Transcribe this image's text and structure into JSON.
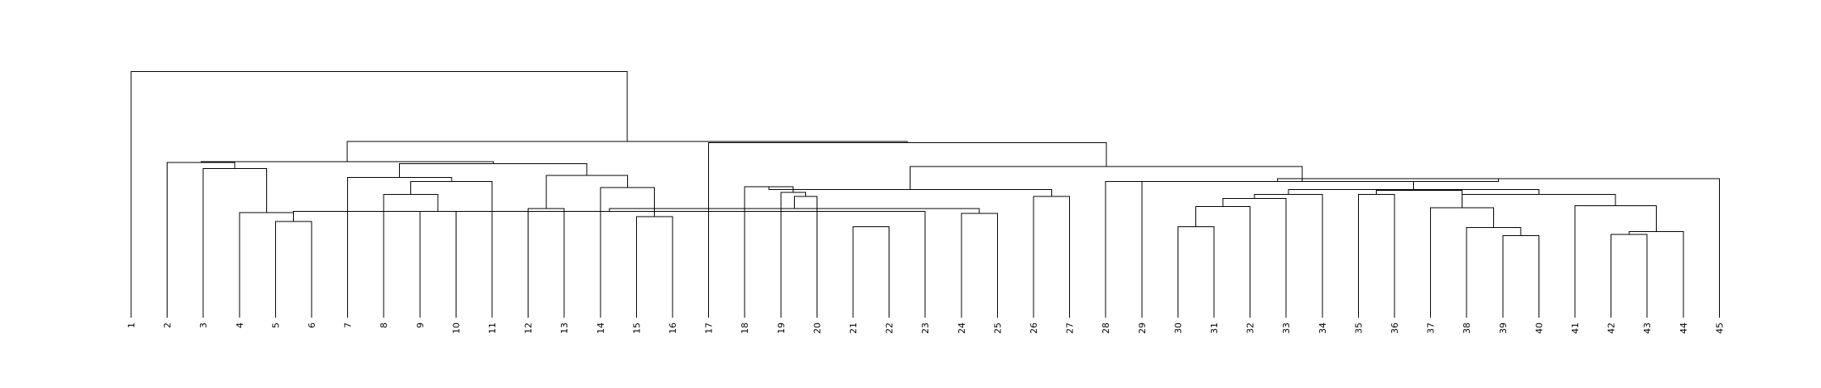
{
  "chart_data": {
    "type": "dendrogram",
    "leaves": [
      "1",
      "2",
      "3",
      "4",
      "5",
      "6",
      "7",
      "8",
      "9",
      "10",
      "11",
      "12",
      "13",
      "14",
      "15",
      "16",
      "17",
      "18",
      "19",
      "20",
      "21",
      "22",
      "23",
      "24",
      "25",
      "26",
      "27",
      "28",
      "29",
      "30",
      "31",
      "32",
      "33",
      "34",
      "35",
      "36",
      "37",
      "38",
      "39",
      "40",
      "41",
      "42",
      "43",
      "44",
      "45"
    ],
    "merges": [
      {
        "a": 5,
        "b": 6,
        "h": 96
      },
      {
        "a": 9,
        "b": 10,
        "h": 106
      },
      {
        "a": 21,
        "b": 22,
        "h": 91
      },
      {
        "a": 24,
        "b": 25,
        "h": 104
      },
      {
        "a": 30,
        "b": 31,
        "h": 91
      },
      {
        "a": 39,
        "b": 40,
        "h": 82
      },
      {
        "a": 42,
        "b": 43,
        "h": 83
      },
      {
        "a": 12,
        "b": 13,
        "h": 109
      },
      {
        "a": 15,
        "b": 16,
        "h": 101
      },
      {
        "a": 26,
        "b": 27,
        "h": 121
      },
      {
        "a": 35,
        "b": 36,
        "h": 123
      },
      {
        "a": -1,
        "b": 23,
        "h": 106
      },
      {
        "a": -6,
        "b": 38,
        "h": 90
      },
      {
        "a": -7,
        "b": 44,
        "h": 86
      },
      {
        "a": 4,
        "b": -1,
        "h": 105
      },
      {
        "a": -12,
        "b": -4,
        "h": 109
      },
      {
        "a": -5,
        "b": 32,
        "h": 111
      },
      {
        "a": 8,
        "b": -2,
        "h": 123
      },
      {
        "a": 20,
        "b": -16,
        "h": 121
      },
      {
        "a": 37,
        "b": -13,
        "h": 110
      },
      {
        "a": 41,
        "b": -14,
        "h": 112
      },
      {
        "a": -17,
        "b": 33,
        "h": 119
      },
      {
        "a": -18,
        "b": 11,
        "h": 136
      },
      {
        "a": 14,
        "b": -9,
        "h": 130
      },
      {
        "a": 3,
        "b": -15,
        "h": 149
      },
      {
        "a": 19,
        "b": -19,
        "h": 125
      },
      {
        "a": -22,
        "b": 34,
        "h": 123
      },
      {
        "a": -20,
        "b": -21,
        "h": 123
      },
      {
        "a": -8,
        "b": -24,
        "h": 142
      },
      {
        "a": -11,
        "b": -20,
        "h": 127
      },
      {
        "a": 7,
        "b": -23,
        "h": 140
      },
      {
        "a": 18,
        "b": -26,
        "h": 131
      },
      {
        "a": -32,
        "b": -10,
        "h": 128
      },
      {
        "a": -27,
        "b": -28,
        "h": 128
      },
      {
        "a": 2,
        "b": -25,
        "h": 155
      },
      {
        "a": -31,
        "b": -29,
        "h": 154
      },
      {
        "a": 29,
        "b": -34,
        "h": 136
      },
      {
        "a": -37,
        "b": 45,
        "h": 139
      },
      {
        "a": 28,
        "b": -38,
        "h": 136
      },
      {
        "a": -33,
        "b": -39,
        "h": 151
      },
      {
        "a": -35,
        "b": -36,
        "h": 156
      },
      {
        "a": 17,
        "b": -40,
        "h": 175
      },
      {
        "a": -41,
        "b": -42,
        "h": 176
      },
      {
        "a": 1,
        "b": -43,
        "h": 246
      }
    ],
    "ylim": [
      0,
      260
    ]
  }
}
